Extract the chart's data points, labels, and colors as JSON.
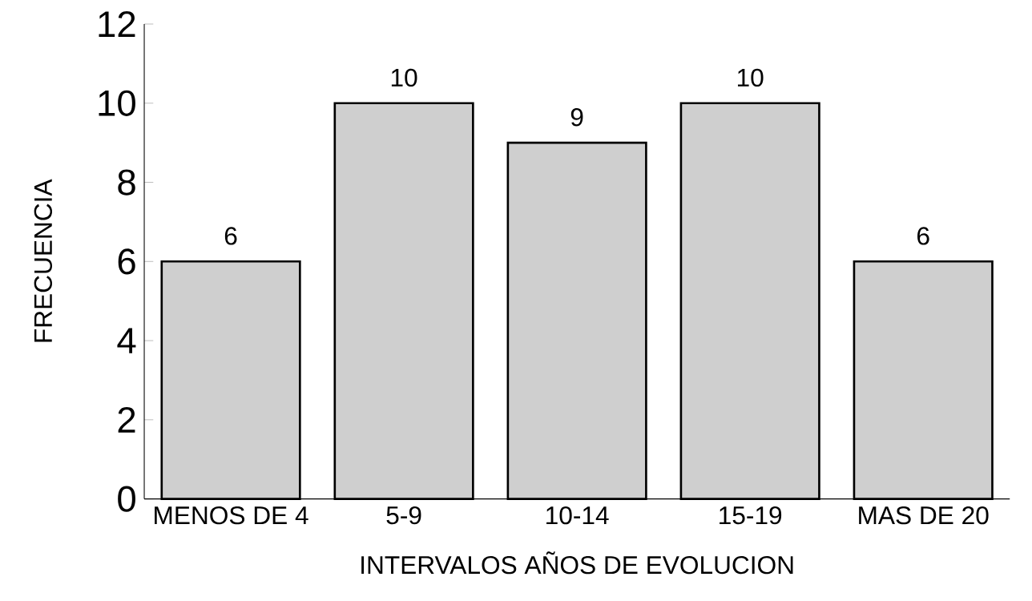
{
  "chart_data": {
    "type": "bar",
    "xlabel": "INTERVALOS AÑOS DE EVOLUCION",
    "ylabel": "FRECUENCIA",
    "categories": [
      "MENOS DE 4",
      "5-9",
      "10-14",
      "15-19",
      "MAS DE 20"
    ],
    "values": [
      6,
      10,
      9,
      10,
      6
    ],
    "color": "#cfcfcf",
    "ylim": [
      0,
      12
    ],
    "yticks": [
      0,
      2,
      4,
      6,
      8,
      10,
      12
    ],
    "data_labels": true
  }
}
